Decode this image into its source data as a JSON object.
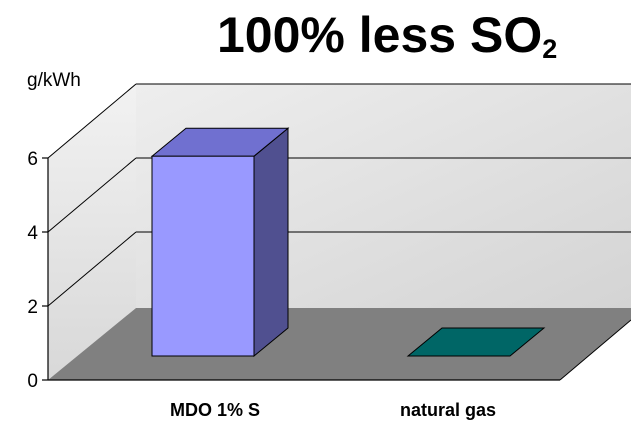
{
  "chart_data": {
    "type": "bar",
    "title": "100% less SO",
    "title_subscript": "2",
    "ylabel": "g/kWh",
    "categories": [
      "MDO 1% S",
      "natural gas"
    ],
    "values": [
      5.4,
      0
    ],
    "ylim": [
      0,
      6
    ],
    "yticks": [
      "0",
      "2",
      "4",
      "6"
    ],
    "grid": true,
    "three_d": true,
    "colors": {
      "bar_front": "#9999ff",
      "bar_top": "#7070d0",
      "bar_side": "#505090",
      "bar2_top": "#006666",
      "floor": "#808080",
      "walls": "#e4e4e4",
      "gridline": "#000000"
    }
  }
}
